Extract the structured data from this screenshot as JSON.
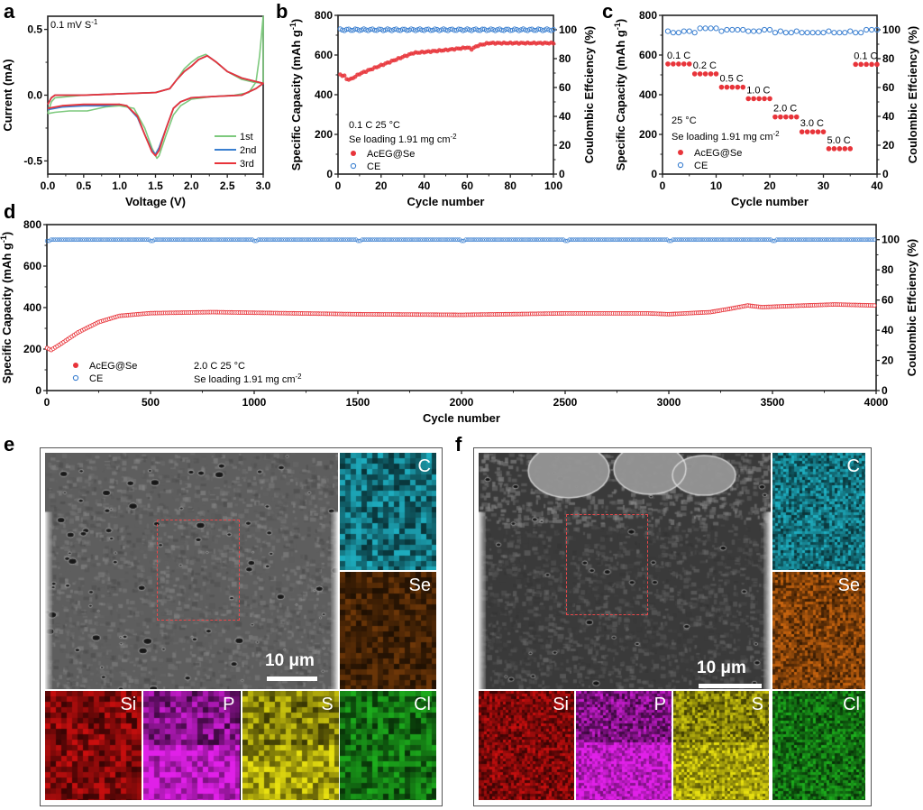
{
  "panels": {
    "a": "a",
    "b": "b",
    "c": "c",
    "d": "d",
    "e": "e",
    "f": "f"
  },
  "chart_data": [
    {
      "id": "a",
      "type": "line",
      "title": "",
      "xlabel": "Voltage (V)",
      "ylabel": "Current (mA)",
      "xlim": [
        0.0,
        3.0
      ],
      "ylim": [
        -0.6,
        0.6
      ],
      "xticks": [
        "0.0",
        "0.5",
        "1.0",
        "1.5",
        "2.0",
        "2.5",
        "3.0"
      ],
      "xtick_values": [
        0,
        0.5,
        1.0,
        1.5,
        2.0,
        2.5,
        3.0
      ],
      "yticks": [
        "-0.5",
        "0.0",
        "0.5"
      ],
      "ytick_values": [
        -0.5,
        0.0,
        0.5
      ],
      "annotation": "0.1 mV S",
      "annotation_sup": "-1",
      "legend_position": "bottom-right",
      "series": [
        {
          "name": "1st",
          "color": "#7dc97d",
          "anodic": [
            [
              0.0,
              -0.14
            ],
            [
              0.05,
              -0.05
            ],
            [
              0.1,
              -0.02
            ],
            [
              0.5,
              0.0
            ],
            [
              1.0,
              0.01
            ],
            [
              1.5,
              0.02
            ],
            [
              1.7,
              0.05
            ],
            [
              1.8,
              0.12
            ],
            [
              1.9,
              0.2
            ],
            [
              2.0,
              0.25
            ],
            [
              2.1,
              0.29
            ],
            [
              2.2,
              0.31
            ],
            [
              2.3,
              0.27
            ],
            [
              2.5,
              0.18
            ],
            [
              2.7,
              0.12
            ],
            [
              2.85,
              0.1
            ],
            [
              3.0,
              0.09
            ]
          ],
          "cathodic": [
            [
              3.0,
              0.6
            ],
            [
              2.95,
              0.3
            ],
            [
              2.9,
              0.1
            ],
            [
              2.8,
              0.02
            ],
            [
              2.6,
              0.0
            ],
            [
              2.3,
              -0.01
            ],
            [
              2.0,
              -0.03
            ],
            [
              1.85,
              -0.08
            ],
            [
              1.75,
              -0.15
            ],
            [
              1.65,
              -0.3
            ],
            [
              1.6,
              -0.38
            ],
            [
              1.55,
              -0.46
            ],
            [
              1.52,
              -0.48
            ],
            [
              1.45,
              -0.4
            ],
            [
              1.35,
              -0.25
            ],
            [
              1.2,
              -0.1
            ],
            [
              1.0,
              -0.08
            ],
            [
              0.8,
              -0.09
            ],
            [
              0.55,
              -0.12
            ],
            [
              0.3,
              -0.12
            ],
            [
              0.1,
              -0.13
            ],
            [
              0.0,
              -0.14
            ]
          ]
        },
        {
          "name": "2nd",
          "color": "#3a7fd0",
          "anodic": [
            [
              0.0,
              -0.07
            ],
            [
              0.05,
              -0.02
            ],
            [
              0.1,
              0.0
            ],
            [
              0.5,
              0.0
            ],
            [
              1.0,
              0.01
            ],
            [
              1.5,
              0.02
            ],
            [
              1.7,
              0.05
            ],
            [
              1.8,
              0.12
            ],
            [
              1.9,
              0.18
            ],
            [
              2.0,
              0.22
            ],
            [
              2.1,
              0.27
            ],
            [
              2.22,
              0.3
            ],
            [
              2.35,
              0.25
            ],
            [
              2.5,
              0.18
            ],
            [
              2.7,
              0.13
            ],
            [
              2.85,
              0.11
            ],
            [
              3.0,
              0.09
            ]
          ],
          "cathodic": [
            [
              3.0,
              0.09
            ],
            [
              2.9,
              0.05
            ],
            [
              2.7,
              0.0
            ],
            [
              2.3,
              -0.01
            ],
            [
              2.0,
              -0.02
            ],
            [
              1.85,
              -0.05
            ],
            [
              1.75,
              -0.1
            ],
            [
              1.65,
              -0.25
            ],
            [
              1.55,
              -0.4
            ],
            [
              1.5,
              -0.45
            ],
            [
              1.45,
              -0.42
            ],
            [
              1.35,
              -0.3
            ],
            [
              1.25,
              -0.17
            ],
            [
              1.1,
              -0.08
            ],
            [
              1.0,
              -0.07
            ],
            [
              0.8,
              -0.08
            ],
            [
              0.5,
              -0.08
            ],
            [
              0.2,
              -0.09
            ],
            [
              0.0,
              -0.11
            ]
          ]
        },
        {
          "name": "3rd",
          "color": "#e8343a",
          "anodic": [
            [
              0.0,
              -0.07
            ],
            [
              0.05,
              -0.02
            ],
            [
              0.1,
              0.0
            ],
            [
              0.5,
              0.0
            ],
            [
              1.0,
              0.01
            ],
            [
              1.5,
              0.02
            ],
            [
              1.7,
              0.05
            ],
            [
              1.8,
              0.12
            ],
            [
              1.9,
              0.18
            ],
            [
              2.0,
              0.22
            ],
            [
              2.1,
              0.27
            ],
            [
              2.22,
              0.3
            ],
            [
              2.35,
              0.25
            ],
            [
              2.5,
              0.18
            ],
            [
              2.7,
              0.13
            ],
            [
              2.85,
              0.11
            ],
            [
              3.0,
              0.09
            ]
          ],
          "cathodic": [
            [
              3.0,
              0.09
            ],
            [
              2.9,
              0.05
            ],
            [
              2.7,
              0.0
            ],
            [
              2.3,
              -0.01
            ],
            [
              2.0,
              -0.02
            ],
            [
              1.85,
              -0.05
            ],
            [
              1.75,
              -0.1
            ],
            [
              1.65,
              -0.25
            ],
            [
              1.55,
              -0.42
            ],
            [
              1.5,
              -0.46
            ],
            [
              1.45,
              -0.43
            ],
            [
              1.35,
              -0.3
            ],
            [
              1.25,
              -0.16
            ],
            [
              1.1,
              -0.08
            ],
            [
              1.0,
              -0.07
            ],
            [
              0.8,
              -0.07
            ],
            [
              0.5,
              -0.07
            ],
            [
              0.2,
              -0.08
            ],
            [
              0.0,
              -0.1
            ]
          ]
        }
      ]
    },
    {
      "id": "b",
      "type": "scatter",
      "xlabel": "Cycle number",
      "ylabel": "Specific Capacity (mAh g",
      "ylabel_sup": "-1",
      "ylabel_end": ")",
      "y2label": "Coulombic Effciency (%)",
      "xlim": [
        0,
        100
      ],
      "ylim": [
        0,
        800
      ],
      "y2lim": [
        0,
        110
      ],
      "xticks": [
        "0",
        "20",
        "40",
        "60",
        "80",
        "100"
      ],
      "xtick_values": [
        0,
        20,
        40,
        60,
        80,
        100
      ],
      "yticks": [
        "0",
        "200",
        "400",
        "600",
        "800"
      ],
      "ytick_values": [
        0,
        200,
        400,
        600,
        800
      ],
      "y2ticks": [
        "0",
        "20",
        "40",
        "60",
        "80",
        "100"
      ],
      "y2tick_values": [
        0,
        20,
        40,
        60,
        80,
        100
      ],
      "annotations": [
        "0.1 C  25 °C",
        "Se loading 1.91 mg cm"
      ],
      "annotation_sup": "-2",
      "legend": [
        "AcEG@Se",
        "CE"
      ],
      "legend_position": "bottom-left",
      "capacity_keypoints": [
        [
          1,
          500
        ],
        [
          3,
          495
        ],
        [
          4,
          478
        ],
        [
          6,
          478
        ],
        [
          10,
          505
        ],
        [
          20,
          548
        ],
        [
          30,
          590
        ],
        [
          35,
          610
        ],
        [
          40,
          615
        ],
        [
          50,
          625
        ],
        [
          58,
          635
        ],
        [
          60,
          638
        ],
        [
          62,
          630
        ],
        [
          65,
          648
        ],
        [
          70,
          660
        ],
        [
          100,
          660
        ]
      ],
      "ce_value": 100
    },
    {
      "id": "c",
      "type": "scatter",
      "xlabel": "Cycle number",
      "ylabel": "Specific Capacity (mAh g",
      "ylabel_sup": "-1",
      "ylabel_end": ")",
      "y2label": "Coulombic Effciency (%)",
      "xlim": [
        0,
        40
      ],
      "ylim": [
        0,
        800
      ],
      "y2lim": [
        0,
        110
      ],
      "xticks": [
        "0",
        "10",
        "20",
        "30",
        "40"
      ],
      "xtick_values": [
        0,
        10,
        20,
        30,
        40
      ],
      "yticks": [
        "0",
        "200",
        "400",
        "600",
        "800"
      ],
      "ytick_values": [
        0,
        200,
        400,
        600,
        800
      ],
      "y2ticks": [
        "0",
        "20",
        "40",
        "60",
        "80",
        "100"
      ],
      "y2tick_values": [
        0,
        20,
        40,
        60,
        80,
        100
      ],
      "annotations": [
        "25 °C",
        "Se loading 1.91 mg cm"
      ],
      "annotation_sup": "-2",
      "legend": [
        "AcEG@Se",
        "CE"
      ],
      "legend_position": "bottom-left",
      "rate_steps": [
        {
          "label": "0.1 C",
          "cycles": [
            1,
            2,
            3,
            4,
            5
          ],
          "capacity": 555
        },
        {
          "label": "0.2 C",
          "cycles": [
            6,
            7,
            8,
            9,
            10
          ],
          "capacity": 505
        },
        {
          "label": "0.5 C",
          "cycles": [
            11,
            12,
            13,
            14,
            15
          ],
          "capacity": 438
        },
        {
          "label": "1.0 C",
          "cycles": [
            16,
            17,
            18,
            19,
            20
          ],
          "capacity": 380
        },
        {
          "label": "2.0 C",
          "cycles": [
            21,
            22,
            23,
            24,
            25
          ],
          "capacity": 288
        },
        {
          "label": "3.0 C",
          "cycles": [
            26,
            27,
            28,
            29,
            30
          ],
          "capacity": 213
        },
        {
          "label": "5.0 C",
          "cycles": [
            31,
            32,
            33,
            34,
            35
          ],
          "capacity": 128
        },
        {
          "label": "0.1 C",
          "cycles": [
            36,
            37,
            38,
            39,
            40
          ],
          "capacity": 553
        }
      ],
      "ce_values": [
        99,
        98,
        98,
        99,
        99,
        98,
        101,
        101,
        101,
        101,
        99,
        100,
        100,
        100,
        100,
        99,
        99,
        99,
        100,
        100,
        98,
        99,
        98,
        98,
        99,
        98,
        98,
        98,
        98,
        98,
        99,
        98,
        98,
        98,
        99,
        98,
        98,
        100,
        100,
        100
      ]
    },
    {
      "id": "d",
      "type": "scatter",
      "xlabel": "Cycle number",
      "ylabel": "Specific Capacity (mAh g",
      "ylabel_sup": "-1",
      "ylabel_end": ")",
      "y2label": "Coulombic Effciency (%)",
      "xlim": [
        0,
        4000
      ],
      "ylim": [
        0,
        800
      ],
      "y2lim": [
        0,
        110
      ],
      "xticks": [
        "0",
        "500",
        "1000",
        "1500",
        "2000",
        "2500",
        "3000",
        "3500",
        "4000"
      ],
      "xtick_values": [
        0,
        500,
        1000,
        1500,
        2000,
        2500,
        3000,
        3500,
        4000
      ],
      "yticks": [
        "0",
        "200",
        "400",
        "600",
        "800"
      ],
      "ytick_values": [
        0,
        200,
        400,
        600,
        800
      ],
      "y2ticks": [
        "0",
        "20",
        "40",
        "60",
        "80",
        "100"
      ],
      "y2tick_values": [
        0,
        20,
        40,
        60,
        80,
        100
      ],
      "annotations": [
        "2.0 C  25 °C",
        "Se loading 1.91 mg cm"
      ],
      "annotation_sup": "-2",
      "legend": [
        "AcEG@Se",
        "CE"
      ],
      "legend_position": "bottom-left",
      "capacity_keypoints": [
        [
          1,
          205
        ],
        [
          20,
          195
        ],
        [
          60,
          220
        ],
        [
          150,
          280
        ],
        [
          250,
          330
        ],
        [
          350,
          360
        ],
        [
          500,
          373
        ],
        [
          800,
          378
        ],
        [
          1000,
          375
        ],
        [
          1500,
          368
        ],
        [
          2000,
          365
        ],
        [
          2500,
          372
        ],
        [
          2900,
          372
        ],
        [
          3000,
          368
        ],
        [
          3200,
          378
        ],
        [
          3300,
          395
        ],
        [
          3380,
          410
        ],
        [
          3450,
          402
        ],
        [
          3600,
          408
        ],
        [
          3800,
          415
        ],
        [
          4000,
          410
        ]
      ],
      "ce_value": 100
    }
  ],
  "sem": [
    {
      "id": "e",
      "scale_bar": "10 μm",
      "maps": [
        "C",
        "Se",
        "Si",
        "P",
        "S",
        "Cl"
      ]
    },
    {
      "id": "f",
      "scale_bar": "10 μm",
      "maps": [
        "C",
        "Se",
        "Si",
        "P",
        "S",
        "Cl"
      ]
    }
  ],
  "colors": {
    "capacity": "#e8343a",
    "ce": "#3a7fd0",
    "map_C": "#22c4d8",
    "map_Se": "#e07010",
    "map_Si": "#e01010",
    "map_P": "#e020e8",
    "map_S": "#e8e010",
    "map_Cl": "#20c020"
  }
}
